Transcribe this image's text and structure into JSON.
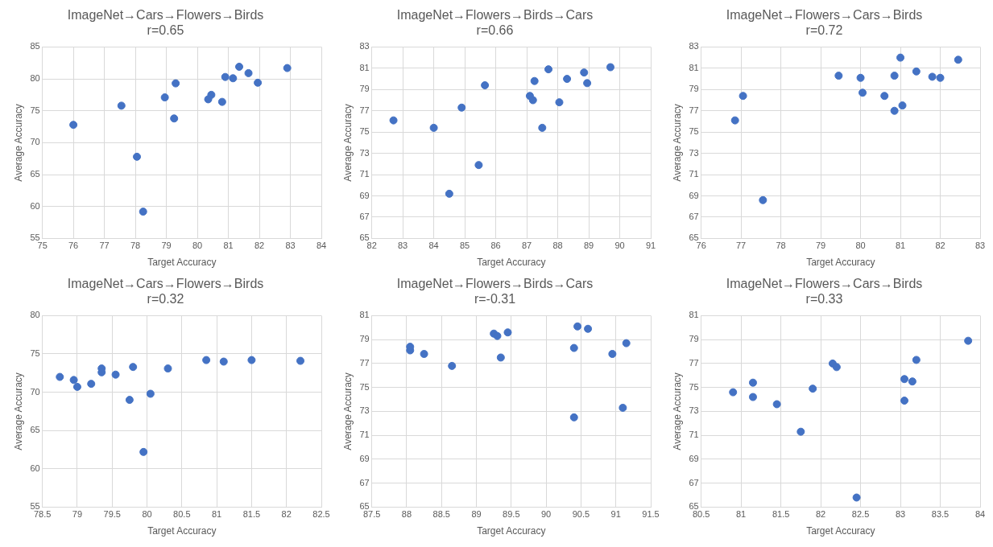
{
  "chart_data": [
    {
      "type": "scatter",
      "title": "ImageNet→Cars→Flowers→Birds",
      "subtitle": "r=0.65",
      "xlabel": "Target Accuracy",
      "ylabel": "Average Accuracy",
      "color": "#4472c4",
      "marker": "circle",
      "grid": true,
      "legend": false,
      "x": [
        76.0,
        77.55,
        78.05,
        78.25,
        78.95,
        79.25,
        79.3,
        80.35,
        80.45,
        80.8,
        80.9,
        81.15,
        81.35,
        81.65,
        81.95,
        82.9
      ],
      "values": [
        72.8,
        75.8,
        67.8,
        59.2,
        77.1,
        73.8,
        79.3,
        76.8,
        77.5,
        76.4,
        80.3,
        80.1,
        81.9,
        80.9,
        79.4,
        81.7
      ],
      "xlim": [
        75,
        84
      ],
      "xticks": [
        75,
        76,
        77,
        78,
        79,
        80,
        81,
        82,
        83,
        84
      ],
      "ylim": [
        55,
        85
      ],
      "yticks": [
        55,
        60,
        65,
        70,
        75,
        80,
        85
      ]
    },
    {
      "type": "scatter",
      "title": "ImageNet→Flowers→Birds→Cars",
      "subtitle": "r=0.66",
      "xlabel": "Target Accuracy",
      "ylabel": "Average Accuracy",
      "color": "#4472c4",
      "marker": "circle",
      "grid": true,
      "legend": false,
      "x": [
        82.7,
        84.0,
        84.5,
        84.9,
        85.45,
        85.65,
        87.1,
        87.2,
        87.25,
        87.5,
        87.7,
        88.05,
        88.3,
        88.85,
        88.95,
        89.7
      ],
      "values": [
        76.1,
        75.4,
        69.2,
        77.3,
        71.9,
        79.4,
        78.4,
        78.0,
        79.8,
        75.4,
        80.9,
        77.8,
        80.0,
        80.6,
        79.6,
        81.1
      ],
      "xlim": [
        82,
        91
      ],
      "xticks": [
        82,
        83,
        84,
        85,
        86,
        87,
        88,
        89,
        90,
        91
      ],
      "ylim": [
        65,
        83
      ],
      "yticks": [
        65,
        67,
        69,
        71,
        73,
        75,
        77,
        79,
        81,
        83
      ]
    },
    {
      "type": "scatter",
      "title": "ImageNet→Flowers→Cars→Birds",
      "subtitle": "r=0.72",
      "xlabel": "Target Accuracy",
      "ylabel": "Average Accuracy",
      "color": "#4472c4",
      "marker": "circle",
      "grid": true,
      "legend": false,
      "x": [
        76.85,
        77.05,
        77.55,
        79.45,
        80.0,
        80.05,
        80.6,
        80.85,
        80.85,
        81.0,
        81.05,
        81.4,
        81.8,
        82.0,
        82.45
      ],
      "values": [
        76.1,
        78.4,
        68.6,
        80.3,
        80.1,
        78.7,
        78.4,
        77.0,
        80.3,
        82.0,
        77.5,
        80.7,
        80.2,
        80.1,
        81.8
      ],
      "xlim": [
        76,
        83
      ],
      "xticks": [
        76,
        77,
        78,
        79,
        80,
        81,
        82,
        83
      ],
      "ylim": [
        65,
        83
      ],
      "yticks": [
        65,
        67,
        69,
        71,
        73,
        75,
        77,
        79,
        81,
        83
      ]
    },
    {
      "type": "scatter",
      "title": "ImageNet→Cars→Flowers→Birds",
      "subtitle": "r=0.32",
      "xlabel": "Target Accuracy",
      "ylabel": "Average Accuracy",
      "color": "#4472c4",
      "marker": "circle",
      "grid": true,
      "legend": false,
      "x": [
        78.75,
        78.95,
        79.0,
        79.2,
        79.35,
        79.35,
        79.55,
        79.75,
        79.8,
        79.95,
        80.05,
        80.3,
        80.85,
        81.1,
        81.5,
        82.2
      ],
      "values": [
        72.0,
        71.6,
        70.7,
        71.1,
        73.1,
        72.6,
        72.3,
        69.0,
        73.3,
        62.2,
        69.8,
        73.1,
        74.2,
        74.0,
        74.2,
        74.1
      ],
      "xlim": [
        78.5,
        82.5
      ],
      "xticks": [
        78.5,
        79,
        79.5,
        80,
        80.5,
        81,
        81.5,
        82,
        82.5
      ],
      "ylim": [
        55,
        80
      ],
      "yticks": [
        55,
        60,
        65,
        70,
        75,
        80
      ]
    },
    {
      "type": "scatter",
      "title": "ImageNet→Flowers→Birds→Cars",
      "subtitle": "r=-0.31",
      "xlabel": "Target Accuracy",
      "ylabel": "Average Accuracy",
      "color": "#4472c4",
      "marker": "circle",
      "grid": true,
      "legend": false,
      "x": [
        88.05,
        88.05,
        88.25,
        88.65,
        89.25,
        89.3,
        89.35,
        89.45,
        90.4,
        90.4,
        90.45,
        90.6,
        90.95,
        91.1,
        91.15
      ],
      "values": [
        78.1,
        78.4,
        77.8,
        76.8,
        79.5,
        79.3,
        77.5,
        79.6,
        78.3,
        72.5,
        80.1,
        79.9,
        77.8,
        73.3,
        78.7
      ],
      "xlim": [
        87.5,
        91.5
      ],
      "xticks": [
        87.5,
        88,
        88.5,
        89,
        89.5,
        90,
        90.5,
        91,
        91.5
      ],
      "ylim": [
        65,
        81
      ],
      "yticks": [
        65,
        67,
        69,
        71,
        73,
        75,
        77,
        79,
        81
      ]
    },
    {
      "type": "scatter",
      "title": "ImageNet→Flowers→Cars→Birds",
      "subtitle": "r=0.33",
      "xlabel": "Target Accuracy",
      "ylabel": "Average Accuracy",
      "color": "#4472c4",
      "marker": "circle",
      "grid": true,
      "legend": false,
      "x": [
        80.9,
        81.15,
        81.15,
        81.45,
        81.75,
        81.9,
        82.15,
        82.2,
        82.45,
        83.05,
        83.05,
        83.15,
        83.2,
        83.85
      ],
      "values": [
        74.6,
        75.4,
        74.2,
        73.6,
        71.3,
        74.9,
        77.0,
        76.7,
        65.8,
        73.9,
        75.7,
        75.5,
        77.3,
        78.9
      ],
      "xlim": [
        80.5,
        84
      ],
      "xticks": [
        80.5,
        81,
        81.5,
        82,
        82.5,
        83,
        83.5,
        84
      ],
      "ylim": [
        65,
        81
      ],
      "yticks": [
        65,
        67,
        69,
        71,
        73,
        75,
        77,
        79,
        81
      ]
    }
  ]
}
